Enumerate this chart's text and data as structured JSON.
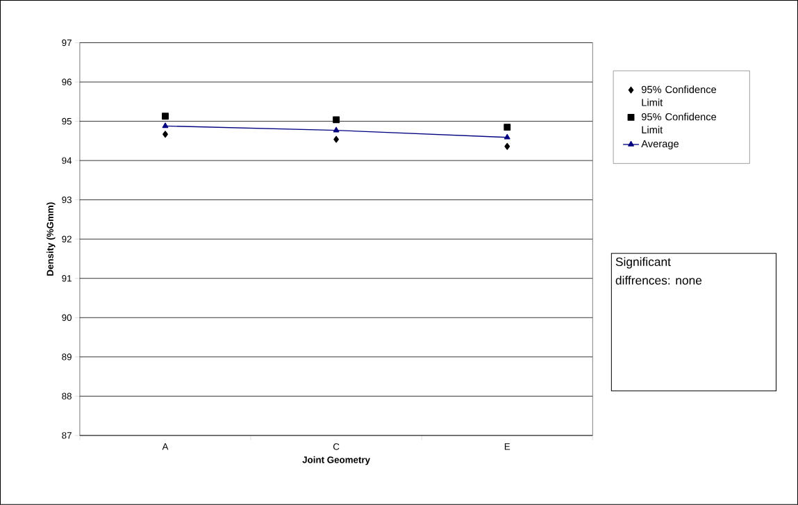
{
  "chart_data": {
    "type": "line",
    "xlabel": "Joint Geometry",
    "ylabel": "Density (%Gmm)",
    "categories": [
      "A",
      "C",
      "E"
    ],
    "series": [
      {
        "name": "95% Confidence Limit",
        "type": "scatter",
        "marker": "diamond",
        "color": "#000000",
        "values": [
          94.67,
          94.54,
          94.36
        ]
      },
      {
        "name": "95% Confidence Limit",
        "type": "scatter",
        "marker": "square",
        "color": "#000000",
        "values": [
          95.13,
          95.04,
          94.85
        ]
      },
      {
        "name": "Average",
        "marker": "triangle",
        "line_style": "solid",
        "color": "#000080",
        "values": [
          94.88,
          94.77,
          94.59
        ]
      }
    ],
    "ylim": [
      87,
      97
    ],
    "yticks": [
      87,
      88,
      89,
      90,
      91,
      92,
      93,
      94,
      95,
      96,
      97
    ],
    "grid": "y",
    "legend": "right",
    "annotations": [
      "Significant diffrences: none"
    ]
  }
}
